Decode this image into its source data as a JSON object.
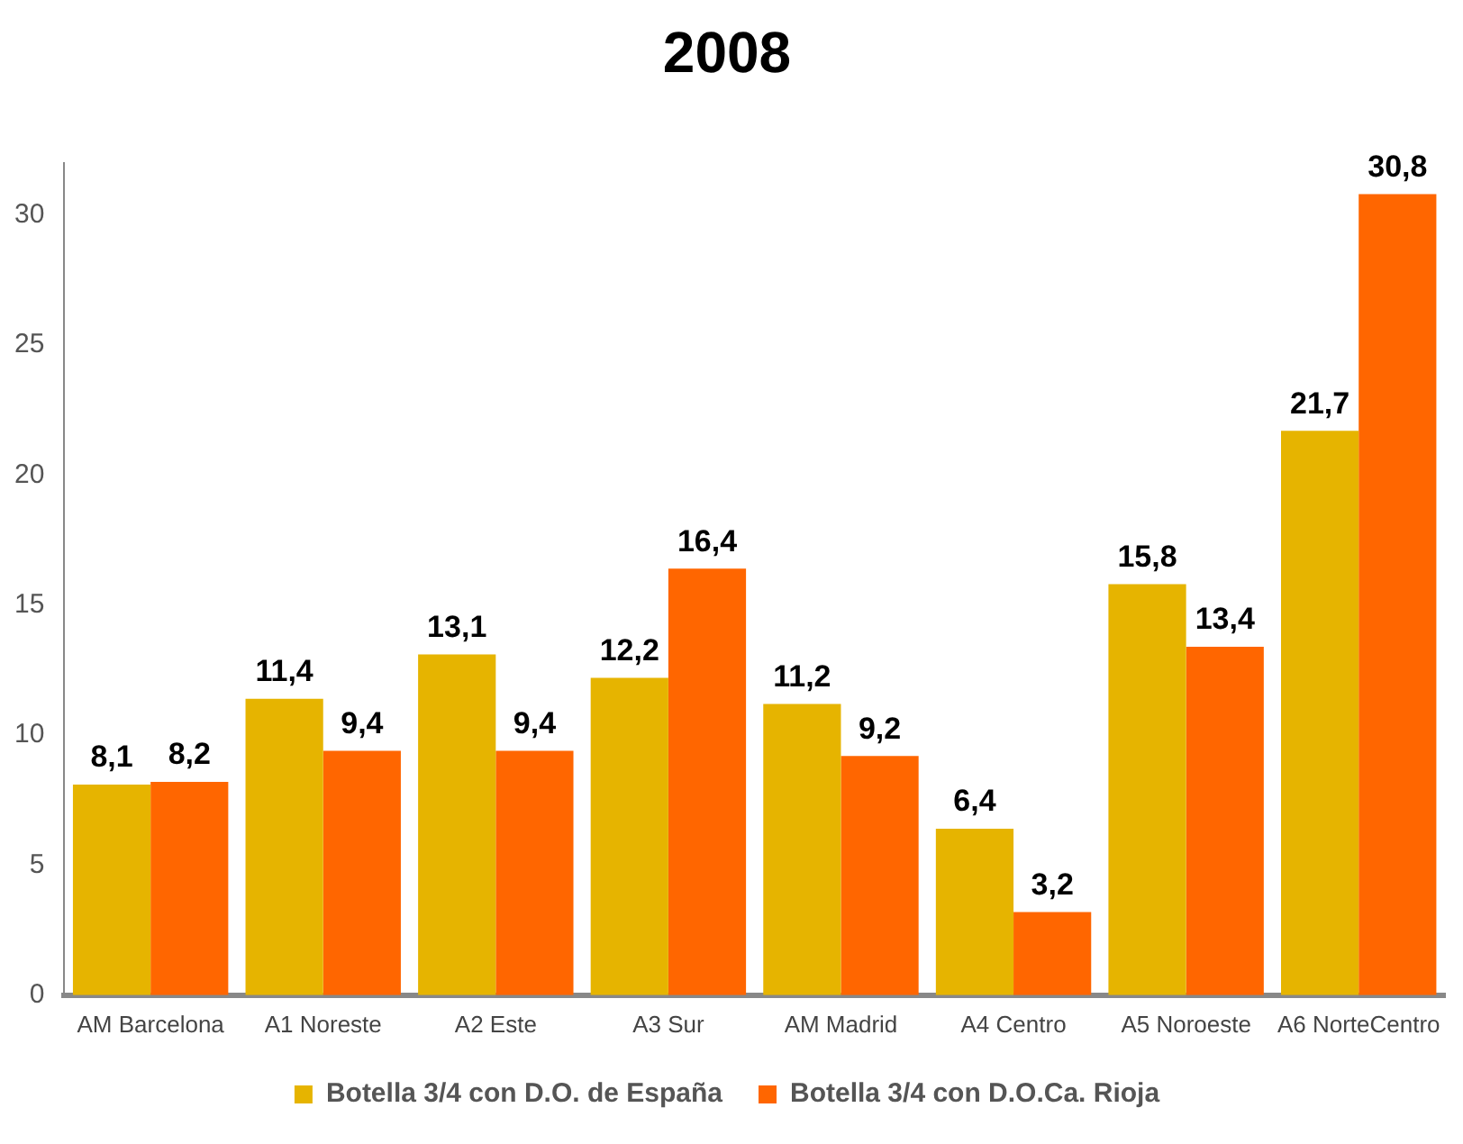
{
  "chart_data": {
    "type": "bar",
    "title": "2008",
    "categories": [
      "AM Barcelona",
      "A1 Noreste",
      "A2 Este",
      "A3 Sur",
      "AM Madrid",
      "A4 Centro",
      "A5 Noroeste",
      "A6 NorteCentro"
    ],
    "series": [
      {
        "name": "Botella 3/4 con D.O. de España",
        "color": "#e6b400",
        "values": [
          8.1,
          11.4,
          13.1,
          12.2,
          11.2,
          6.4,
          15.8,
          21.7
        ],
        "value_labels": [
          "8,1",
          "11,4",
          "13,1",
          "12,2",
          "11,2",
          "6,4",
          "15,8",
          "21,7"
        ]
      },
      {
        "name": "Botella 3/4 con D.O.Ca. Rioja",
        "color": "#ff6600",
        "values": [
          8.2,
          9.4,
          9.4,
          16.4,
          9.2,
          3.2,
          13.4,
          30.8
        ],
        "value_labels": [
          "8,2",
          "9,4",
          "9,4",
          "16,4",
          "9,2",
          "3,2",
          "13,4",
          "30,8"
        ]
      }
    ],
    "ylim": [
      0,
      32
    ],
    "yticks": [
      0,
      5,
      10,
      15,
      20,
      25,
      30
    ],
    "grid": false,
    "legend": "bottom"
  }
}
